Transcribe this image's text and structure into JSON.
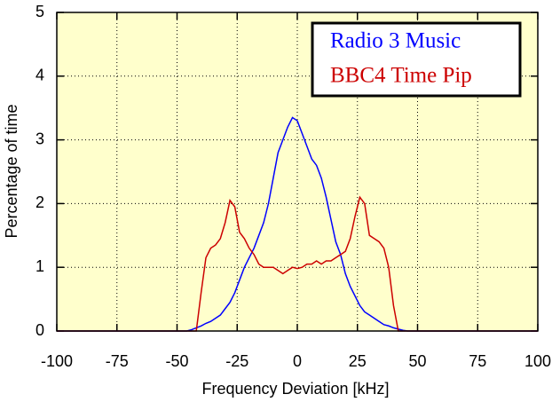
{
  "chart_data": {
    "type": "line",
    "xlabel": "Frequency Deviation [kHz]",
    "ylabel": "Percentage of time",
    "x": [
      -100,
      -50,
      -48,
      -46,
      -44,
      -42,
      -40,
      -38,
      -36,
      -34,
      -32,
      -30,
      -28,
      -26,
      -24,
      -22,
      -20,
      -18,
      -16,
      -14,
      -12,
      -10,
      -8,
      -6,
      -4,
      -2,
      0,
      2,
      4,
      6,
      8,
      10,
      12,
      14,
      16,
      18,
      20,
      22,
      24,
      26,
      28,
      30,
      32,
      34,
      36,
      38,
      40,
      42,
      44,
      46,
      48,
      50,
      100
    ],
    "series": [
      {
        "name": "Radio 3 Music",
        "color": "#0000ff",
        "values": [
          0,
          0,
          0,
          0,
          0.02,
          0.05,
          0.08,
          0.12,
          0.15,
          0.2,
          0.25,
          0.35,
          0.45,
          0.6,
          0.8,
          1.0,
          1.15,
          1.3,
          1.5,
          1.7,
          2.0,
          2.4,
          2.8,
          3.0,
          3.2,
          3.35,
          3.3,
          3.1,
          2.9,
          2.7,
          2.6,
          2.4,
          2.1,
          1.75,
          1.4,
          1.2,
          0.9,
          0.7,
          0.55,
          0.4,
          0.3,
          0.25,
          0.2,
          0.15,
          0.1,
          0.08,
          0.05,
          0.03,
          0.01,
          0,
          0,
          0,
          0
        ]
      },
      {
        "name": "BBC4 Time Pip",
        "color": "#cc0000",
        "values": [
          0,
          0,
          0,
          0,
          0,
          0,
          0.6,
          1.15,
          1.3,
          1.35,
          1.45,
          1.7,
          2.05,
          1.95,
          1.55,
          1.45,
          1.3,
          1.2,
          1.05,
          1.0,
          1.0,
          1.0,
          0.95,
          0.9,
          0.95,
          1.0,
          0.98,
          1.0,
          1.05,
          1.05,
          1.1,
          1.05,
          1.1,
          1.1,
          1.15,
          1.2,
          1.25,
          1.45,
          1.8,
          2.1,
          2.0,
          1.5,
          1.45,
          1.4,
          1.3,
          1.0,
          0.4,
          0,
          0,
          0,
          0,
          0,
          0
        ]
      }
    ],
    "xlim": [
      -100,
      100
    ],
    "xticks": [
      -100,
      -75,
      -50,
      -25,
      0,
      25,
      50,
      75,
      100
    ],
    "ylim": [
      0,
      5
    ],
    "yticks": [
      0,
      1,
      2,
      3,
      4,
      5
    ],
    "grid": true,
    "legend": "upper right",
    "background": "#ffffcc"
  }
}
